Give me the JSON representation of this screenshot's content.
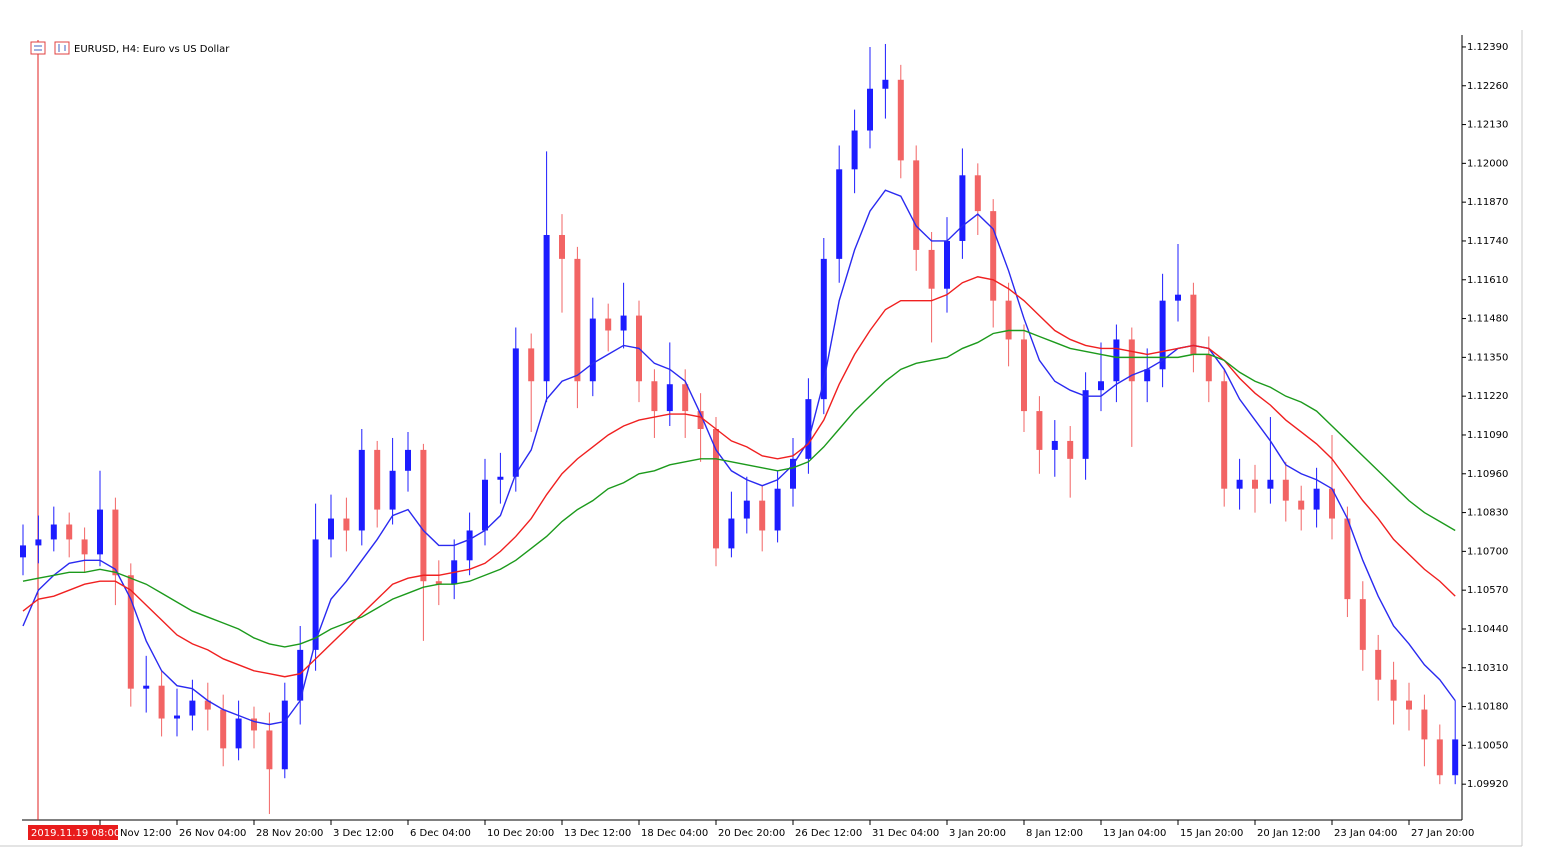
{
  "chart_data": {
    "type": "candlestick",
    "title": "EURUSD, H4:  Euro vs US Dollar",
    "cursor_label": "2019.11.19 08:00",
    "up_color": "#1c1cff",
    "down_color": "#f26464",
    "grid": false,
    "x": [
      null,
      null,
      null,
      null,
      null,
      "Nov 12:00",
      null,
      null,
      null,
      null,
      "26 Nov 04:00",
      null,
      null,
      null,
      null,
      "28 Nov 20:00",
      null,
      null,
      null,
      null,
      "3 Dec 12:00",
      null,
      null,
      null,
      null,
      "6 Dec 04:00",
      null,
      null,
      null,
      null,
      "10 Dec 20:00",
      null,
      null,
      null,
      null,
      "13 Dec 12:00",
      null,
      null,
      null,
      null,
      "18 Dec 04:00",
      null,
      null,
      null,
      null,
      "20 Dec 20:00",
      null,
      null,
      null,
      null,
      "26 Dec 12:00",
      null,
      null,
      null,
      null,
      "31 Dec 04:00",
      null,
      null,
      null,
      null,
      "3 Jan 20:00",
      null,
      null,
      null,
      null,
      "8 Jan 12:00",
      null,
      null,
      null,
      null,
      "13 Jan 04:00",
      null,
      null,
      null,
      null,
      "15 Jan 20:00",
      null,
      null,
      null,
      null,
      "20 Jan 12:00",
      null,
      null,
      null,
      null,
      "23 Jan 04:00",
      null,
      null,
      null,
      null,
      "27 Jan 20:00",
      null,
      null,
      null
    ],
    "open": [
      1.1068,
      1.1072,
      1.1074,
      1.1079,
      1.1074,
      1.1069,
      1.1084,
      1.1062,
      1.1024,
      1.1025,
      1.1014,
      1.1015,
      1.102,
      1.1017,
      1.1004,
      1.1014,
      1.101,
      1.0997,
      1.102,
      1.1037,
      1.1074,
      1.1081,
      1.1077,
      1.1104,
      1.1084,
      1.1097,
      1.1104,
      1.106,
      1.1059,
      1.1067,
      1.1077,
      1.1094,
      1.1095,
      1.1138,
      1.1127,
      1.1176,
      1.1168,
      1.1127,
      1.1148,
      1.1144,
      1.1149,
      1.1127,
      1.1117,
      1.1126,
      1.1117,
      1.1111,
      1.1071,
      1.1081,
      1.1087,
      1.1077,
      1.1091,
      1.1101,
      1.1121,
      1.1168,
      1.1198,
      1.1211,
      1.1225,
      1.1228,
      1.1201,
      1.1171,
      1.1158,
      1.1174,
      1.1196,
      1.1184,
      1.1154,
      1.1141,
      1.1117,
      1.1104,
      1.1107,
      1.1101,
      1.1124,
      1.1127,
      1.1141,
      1.1127,
      1.1131,
      1.1154,
      1.1156,
      1.1136,
      1.1127,
      1.1091,
      1.1094,
      1.1091,
      1.1094,
      1.1087,
      1.1084,
      1.1091,
      1.1081,
      1.1054,
      1.1037,
      1.1027,
      1.102,
      1.1017,
      1.1007,
      1.0995
    ],
    "high": [
      1.1079,
      1.1082,
      1.1085,
      1.1083,
      1.1078,
      1.1097,
      1.1088,
      1.1066,
      1.1035,
      1.103,
      1.1024,
      1.1027,
      1.1026,
      1.1022,
      1.102,
      1.1018,
      1.1016,
      1.1026,
      1.1045,
      1.1086,
      1.1089,
      1.1088,
      1.1111,
      1.1107,
      1.1108,
      1.111,
      1.1106,
      1.1067,
      1.1074,
      1.1083,
      1.1101,
      1.1103,
      1.1145,
      1.1143,
      1.1204,
      1.1183,
      1.1172,
      1.1155,
      1.1153,
      1.116,
      1.1154,
      1.1131,
      1.114,
      1.1131,
      1.1123,
      1.1115,
      1.109,
      1.1095,
      1.1092,
      1.1097,
      1.1108,
      1.1128,
      1.1175,
      1.1206,
      1.1218,
      1.1239,
      1.124,
      1.1233,
      1.1206,
      1.1177,
      1.1182,
      1.1205,
      1.12,
      1.1188,
      1.116,
      1.1146,
      1.1122,
      1.1114,
      1.1112,
      1.113,
      1.114,
      1.1146,
      1.1145,
      1.1138,
      1.1163,
      1.1173,
      1.116,
      1.1142,
      1.1131,
      1.1101,
      1.1099,
      1.1115,
      1.11,
      1.1092,
      1.1098,
      1.1109,
      1.1085,
      1.106,
      1.1042,
      1.1033,
      1.1026,
      1.1022,
      1.1012,
      1.102
    ],
    "low": [
      1.1062,
      1.1066,
      1.107,
      1.1068,
      1.1063,
      1.1065,
      1.1052,
      1.1018,
      1.1016,
      1.1008,
      1.1008,
      1.101,
      1.101,
      1.0998,
      1.1,
      1.1004,
      1.0982,
      1.0994,
      1.1012,
      1.103,
      1.1068,
      1.107,
      1.1072,
      1.1078,
      1.1079,
      1.109,
      1.104,
      1.1052,
      1.1054,
      1.1062,
      1.1072,
      1.1086,
      1.109,
      1.111,
      1.112,
      1.115,
      1.1118,
      1.1122,
      1.1137,
      1.1138,
      1.112,
      1.1108,
      1.1112,
      1.1108,
      1.11,
      1.1065,
      1.1068,
      1.1076,
      1.107,
      1.1073,
      1.1085,
      1.1096,
      1.1116,
      1.116,
      1.119,
      1.1205,
      1.1215,
      1.1195,
      1.1164,
      1.114,
      1.115,
      1.1168,
      1.1176,
      1.1145,
      1.1132,
      1.111,
      1.1096,
      1.1095,
      1.1088,
      1.1094,
      1.1117,
      1.112,
      1.1105,
      1.112,
      1.1125,
      1.1147,
      1.113,
      1.112,
      1.1085,
      1.1084,
      1.1083,
      1.1086,
      1.108,
      1.1077,
      1.1078,
      1.1074,
      1.1048,
      1.103,
      1.102,
      1.1012,
      1.101,
      1.0998,
      1.0992,
      1.0992
    ],
    "close": [
      1.1072,
      1.1074,
      1.1079,
      1.1074,
      1.1069,
      1.1084,
      1.1062,
      1.1024,
      1.1025,
      1.1014,
      1.1015,
      1.102,
      1.1017,
      1.1004,
      1.1014,
      1.101,
      1.0997,
      1.102,
      1.1037,
      1.1074,
      1.1081,
      1.1077,
      1.1104,
      1.1084,
      1.1097,
      1.1104,
      1.106,
      1.1059,
      1.1067,
      1.1077,
      1.1094,
      1.1095,
      1.1138,
      1.1127,
      1.1176,
      1.1168,
      1.1127,
      1.1148,
      1.1144,
      1.1149,
      1.1127,
      1.1117,
      1.1126,
      1.1117,
      1.1111,
      1.1071,
      1.1081,
      1.1087,
      1.1077,
      1.1091,
      1.1101,
      1.1121,
      1.1168,
      1.1198,
      1.1211,
      1.1225,
      1.1228,
      1.1201,
      1.1171,
      1.1158,
      1.1174,
      1.1196,
      1.1184,
      1.1154,
      1.1141,
      1.1117,
      1.1104,
      1.1107,
      1.1101,
      1.1124,
      1.1127,
      1.1141,
      1.1127,
      1.1131,
      1.1154,
      1.1156,
      1.1136,
      1.1127,
      1.1091,
      1.1094,
      1.1091,
      1.1094,
      1.1087,
      1.1084,
      1.1091,
      1.1081,
      1.1054,
      1.1037,
      1.1027,
      1.102,
      1.1017,
      1.1007,
      1.0995,
      1.1007
    ],
    "overlays": [
      {
        "color": "#2a2af0",
        "values": [
          1.1045,
          1.1057,
          1.1062,
          1.1066,
          1.1067,
          1.1067,
          1.1064,
          1.1054,
          1.104,
          1.103,
          1.1025,
          1.1024,
          1.102,
          1.1017,
          1.1015,
          1.1013,
          1.1012,
          1.1013,
          1.102,
          1.104,
          1.1054,
          1.106,
          1.1067,
          1.1074,
          1.1082,
          1.1084,
          1.1077,
          1.1072,
          1.1072,
          1.1074,
          1.1077,
          1.1082,
          1.1096,
          1.1104,
          1.1121,
          1.1127,
          1.1129,
          1.1133,
          1.1136,
          1.1139,
          1.1138,
          1.1133,
          1.1131,
          1.1127,
          1.1116,
          1.1104,
          1.1097,
          1.1094,
          1.1092,
          1.1094,
          1.1099,
          1.1107,
          1.1127,
          1.1154,
          1.1171,
          1.1184,
          1.1191,
          1.1189,
          1.1179,
          1.1174,
          1.1174,
          1.1179,
          1.1183,
          1.1178,
          1.1164,
          1.1148,
          1.1134,
          1.1127,
          1.1124,
          1.1122,
          1.1122,
          1.1126,
          1.1129,
          1.1131,
          1.1134,
          1.1138,
          1.1139,
          1.1138,
          1.1131,
          1.1121,
          1.1114,
          1.1107,
          1.1099,
          1.1096,
          1.1094,
          1.1091,
          1.1081,
          1.1067,
          1.1055,
          1.1045,
          1.1039,
          1.1032,
          1.1027,
          1.102
        ]
      },
      {
        "color": "#f02020",
        "values": [
          1.105,
          1.1054,
          1.1055,
          1.1057,
          1.1059,
          1.106,
          1.106,
          1.1057,
          1.1052,
          1.1047,
          1.1042,
          1.1039,
          1.1037,
          1.1034,
          1.1032,
          1.103,
          1.1029,
          1.1028,
          1.1029,
          1.1034,
          1.1039,
          1.1044,
          1.1049,
          1.1054,
          1.1059,
          1.1061,
          1.1062,
          1.1062,
          1.1063,
          1.1064,
          1.1066,
          1.107,
          1.1075,
          1.1081,
          1.1089,
          1.1096,
          1.1101,
          1.1105,
          1.1109,
          1.1112,
          1.1114,
          1.1115,
          1.1116,
          1.1116,
          1.1115,
          1.1111,
          1.1107,
          1.1105,
          1.1102,
          1.1101,
          1.1102,
          1.1106,
          1.1114,
          1.1126,
          1.1136,
          1.1144,
          1.1151,
          1.1154,
          1.1154,
          1.1154,
          1.1156,
          1.116,
          1.1162,
          1.1161,
          1.1158,
          1.1154,
          1.1149,
          1.1144,
          1.1141,
          1.1139,
          1.1138,
          1.1138,
          1.1137,
          1.1136,
          1.1137,
          1.1138,
          1.1139,
          1.1138,
          1.1134,
          1.1128,
          1.1123,
          1.1119,
          1.1114,
          1.111,
          1.1106,
          1.1101,
          1.1094,
          1.1087,
          1.1081,
          1.1074,
          1.1069,
          1.1064,
          1.106,
          1.1055
        ]
      },
      {
        "color": "#1c9a1c",
        "values": [
          1.106,
          1.1061,
          1.1062,
          1.1063,
          1.1063,
          1.1064,
          1.1063,
          1.1061,
          1.1059,
          1.1056,
          1.1053,
          1.105,
          1.1048,
          1.1046,
          1.1044,
          1.1041,
          1.1039,
          1.1038,
          1.1039,
          1.1041,
          1.1044,
          1.1046,
          1.1048,
          1.1051,
          1.1054,
          1.1056,
          1.1058,
          1.1059,
          1.1059,
          1.106,
          1.1062,
          1.1064,
          1.1067,
          1.1071,
          1.1075,
          1.108,
          1.1084,
          1.1087,
          1.1091,
          1.1093,
          1.1096,
          1.1097,
          1.1099,
          1.11,
          1.1101,
          1.1101,
          1.11,
          1.1099,
          1.1098,
          1.1097,
          1.1098,
          1.11,
          1.1105,
          1.1111,
          1.1117,
          1.1122,
          1.1127,
          1.1131,
          1.1133,
          1.1134,
          1.1135,
          1.1138,
          1.114,
          1.1143,
          1.1144,
          1.1144,
          1.1142,
          1.114,
          1.1138,
          1.1137,
          1.1136,
          1.1135,
          1.1135,
          1.1135,
          1.1135,
          1.1135,
          1.1136,
          1.1136,
          1.1134,
          1.113,
          1.1127,
          1.1125,
          1.1122,
          1.112,
          1.1117,
          1.1112,
          1.1107,
          1.1102,
          1.1097,
          1.1092,
          1.1087,
          1.1083,
          1.108,
          1.1077
        ]
      }
    ],
    "ylim": [
      1.098,
      1.1242
    ],
    "yticks": [
      {
        "value": 1.0992,
        "label": "1.09920"
      },
      {
        "value": 1.1005,
        "label": "1.10050"
      },
      {
        "value": 1.1018,
        "label": "1.10180"
      },
      {
        "value": 1.1031,
        "label": "1.10310"
      },
      {
        "value": 1.1044,
        "label": "1.10440"
      },
      {
        "value": 1.1057,
        "label": "1.10570"
      },
      {
        "value": 1.107,
        "label": "1.10700"
      },
      {
        "value": 1.1083,
        "label": "1.10830"
      },
      {
        "value": 1.1096,
        "label": "1.10960"
      },
      {
        "value": 1.1109,
        "label": "1.11090"
      },
      {
        "value": 1.1122,
        "label": "1.11220"
      },
      {
        "value": 1.1135,
        "label": "1.11350"
      },
      {
        "value": 1.1148,
        "label": "1.11480"
      },
      {
        "value": 1.1161,
        "label": "1.11610"
      },
      {
        "value": 1.1174,
        "label": "1.11740"
      },
      {
        "value": 1.1187,
        "label": "1.11870"
      },
      {
        "value": 1.12,
        "label": "1.12000"
      },
      {
        "value": 1.1213,
        "label": "1.12130"
      },
      {
        "value": 1.1226,
        "label": "1.12260"
      },
      {
        "value": 1.1239,
        "label": "1.12390"
      }
    ]
  }
}
